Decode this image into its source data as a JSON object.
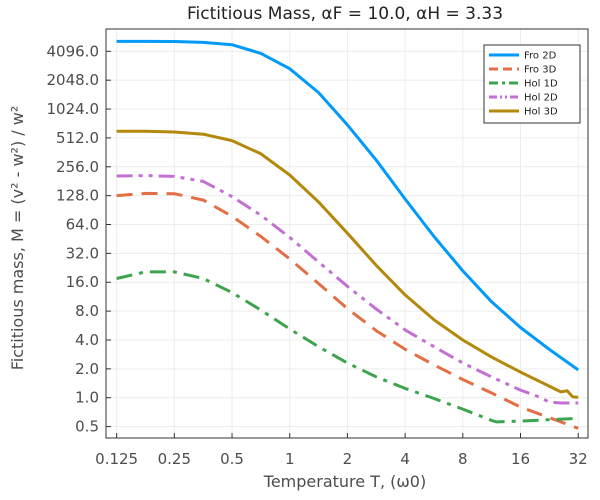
{
  "chart_data": {
    "type": "line",
    "title": "Fictitious Mass, αF = 10.0, αH = 3.33",
    "xlabel": "Temperature T, (ω0)",
    "ylabel": "Fictitious mass, M = (v² - w²) / w²",
    "xscale": "log2",
    "yscale": "log2",
    "xlim": [
      0.11,
      36
    ],
    "ylim": [
      0.38,
      7000
    ],
    "xticks": [
      0.125,
      0.25,
      0.5,
      1,
      2,
      4,
      8,
      16,
      32
    ],
    "xtick_labels": [
      "0.125",
      "0.25",
      "0.5",
      "1",
      "2",
      "4",
      "8",
      "16",
      "32"
    ],
    "yticks": [
      0.5,
      1,
      2,
      4,
      8,
      16,
      32,
      64,
      128,
      256,
      512,
      1024,
      2048,
      4096
    ],
    "ytick_labels": [
      "0.5",
      "1.0",
      "2.0",
      "4.0",
      "8.0",
      "16.0",
      "32.0",
      "64.0",
      "128.0",
      "256.0",
      "512.0",
      "1024.0",
      "2048.0",
      "4096.0"
    ],
    "grid": true,
    "legend_position": "top-right",
    "series": [
      {
        "name": "Fro 2D",
        "color": "#009af9",
        "dash": "solid",
        "x": [
          0.125,
          0.177,
          0.25,
          0.354,
          0.5,
          0.707,
          1.0,
          1.414,
          2.0,
          2.83,
          4.0,
          5.66,
          8.0,
          11.3,
          16.0,
          22.6,
          32.0
        ],
        "y": [
          5200,
          5200,
          5190,
          5080,
          4800,
          3900,
          2700,
          1520,
          700,
          300,
          118,
          48,
          21,
          10,
          5.4,
          3.2,
          1.95
        ]
      },
      {
        "name": "Fro 3D",
        "color": "#e26f46",
        "dash": "dashed",
        "x": [
          0.125,
          0.177,
          0.25,
          0.354,
          0.5,
          0.707,
          1.0,
          1.414,
          2.0,
          2.83,
          4.0,
          5.66,
          8.0,
          11.3,
          16.0,
          22.6,
          32.0
        ],
        "y": [
          128,
          135,
          134,
          115,
          78,
          48,
          28,
          15.5,
          8.5,
          5.0,
          3.2,
          2.2,
          1.55,
          1.12,
          0.8,
          0.62,
          0.48
        ]
      },
      {
        "name": "Hol 1D",
        "color": "#3da44d",
        "dash": "dashdot",
        "x": [
          0.125,
          0.177,
          0.25,
          0.354,
          0.5,
          0.707,
          1.0,
          1.414,
          2.0,
          2.83,
          4.0,
          5.66,
          8.0,
          11.3,
          12.0,
          16.0,
          22.6,
          32.0
        ],
        "y": [
          17.5,
          20.5,
          20.5,
          17.5,
          12.5,
          8.2,
          5.2,
          3.4,
          2.3,
          1.65,
          1.25,
          0.98,
          0.76,
          0.58,
          0.56,
          0.57,
          0.59,
          0.61
        ]
      },
      {
        "name": "Hol 2D",
        "color": "#c271d2",
        "dash": "dashdotdot",
        "x": [
          0.125,
          0.177,
          0.25,
          0.354,
          0.5,
          0.707,
          1.0,
          1.414,
          2.0,
          2.83,
          4.0,
          5.66,
          8.0,
          11.3,
          16.0,
          20.0,
          22.6,
          26.0,
          32.0
        ],
        "y": [
          205,
          207,
          203,
          180,
          125,
          80,
          47,
          26,
          14.5,
          8.4,
          5.1,
          3.4,
          2.3,
          1.65,
          1.2,
          1.02,
          0.9,
          0.88,
          0.88
        ]
      },
      {
        "name": "Hol 3D",
        "color": "#b3890b",
        "dash": "solid",
        "x": [
          0.125,
          0.177,
          0.25,
          0.354,
          0.5,
          0.707,
          1.0,
          1.414,
          2.0,
          2.83,
          4.0,
          5.66,
          8.0,
          11.3,
          16.0,
          22.6,
          26.0,
          28.0,
          30.0,
          32.0
        ],
        "y": [
          600,
          600,
          590,
          560,
          480,
          350,
          210,
          110,
          52,
          24,
          11.8,
          6.5,
          4.0,
          2.65,
          1.85,
          1.32,
          1.15,
          1.18,
          1.02,
          1.01
        ]
      }
    ]
  }
}
